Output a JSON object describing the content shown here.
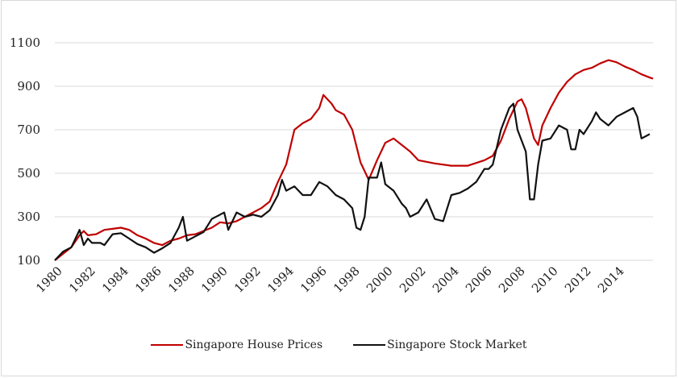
{
  "chart_data": {
    "type": "line",
    "title": "",
    "xlabel": "",
    "ylabel": "",
    "ylim": [
      100,
      1100
    ],
    "xlim": [
      1980,
      2016.2
    ],
    "yticks": [
      "1100",
      "900",
      "700",
      "500",
      "300",
      "100"
    ],
    "ytick_values": [
      1100,
      900,
      700,
      500,
      300,
      100
    ],
    "xticks": [
      "1980",
      "1982",
      "1984",
      "1986",
      "1988",
      "1990",
      "1992",
      "1994",
      "1996",
      "1998",
      "2000",
      "2002",
      "2004",
      "2006",
      "2008",
      "2010",
      "2012",
      "2014"
    ],
    "xtick_values": [
      1980,
      1982,
      1984,
      1986,
      1988,
      1990,
      1992,
      1994,
      1996,
      1998,
      2000,
      2002,
      2004,
      2006,
      2008,
      2010,
      2012,
      2014
    ],
    "grid": true,
    "legend_position": "bottom",
    "series": [
      {
        "name": "Singapore House Prices",
        "color": "#c00000",
        "x": [
          1980,
          1980.5,
          1981,
          1981.5,
          1981.75,
          1982,
          1982.5,
          1983,
          1983.5,
          1984,
          1984.5,
          1985,
          1985.5,
          1986,
          1986.5,
          1987,
          1987.5,
          1988,
          1988.5,
          1989,
          1989.5,
          1990,
          1990.5,
          1991,
          1991.5,
          1992,
          1992.5,
          1993,
          1993.5,
          1994,
          1994.5,
          1995,
          1995.5,
          1996,
          1996.25,
          1996.75,
          1997,
          1997.5,
          1998,
          1998.5,
          1999,
          1999.5,
          2000,
          2000.5,
          2001,
          2001.5,
          2002,
          2003,
          2004,
          2005,
          2006,
          2006.5,
          2007,
          2007.5,
          2008,
          2008.25,
          2008.5,
          2009,
          2009.25,
          2009.5,
          2010,
          2010.5,
          2011,
          2011.5,
          2012,
          2012.5,
          2013,
          2013.5,
          2014,
          2014.5,
          2015,
          2015.5,
          2016,
          2016.2
        ],
        "y": [
          100,
          130,
          160,
          215,
          235,
          215,
          220,
          240,
          245,
          250,
          240,
          215,
          200,
          180,
          170,
          190,
          200,
          215,
          220,
          235,
          250,
          275,
          270,
          280,
          300,
          320,
          340,
          370,
          460,
          540,
          700,
          730,
          750,
          800,
          860,
          820,
          790,
          770,
          700,
          550,
          470,
          560,
          640,
          660,
          630,
          600,
          560,
          545,
          535,
          535,
          560,
          580,
          650,
          750,
          830,
          840,
          800,
          660,
          630,
          720,
          800,
          870,
          920,
          955,
          975,
          985,
          1005,
          1020,
          1010,
          990,
          975,
          955,
          940,
          935
        ]
      },
      {
        "name": "Singapore Stock Market",
        "color": "#111111",
        "x": [
          1980,
          1980.5,
          1981,
          1981.5,
          1981.75,
          1982,
          1982.25,
          1982.75,
          1983,
          1983.5,
          1984,
          1984.5,
          1985,
          1985.5,
          1986,
          1986.5,
          1987,
          1987.5,
          1987.75,
          1988,
          1988.5,
          1989,
          1989.5,
          1990,
          1990.25,
          1990.5,
          1991,
          1991.5,
          1992,
          1992.5,
          1993,
          1993.5,
          1993.75,
          1994,
          1994.5,
          1995,
          1995.5,
          1996,
          1996.5,
          1997,
          1997.5,
          1998,
          1998.25,
          1998.5,
          1998.75,
          1999,
          1999.5,
          1999.75,
          2000,
          2000.5,
          2001,
          2001.25,
          2001.5,
          2002,
          2002.5,
          2003,
          2003.5,
          2004,
          2004.5,
          2005,
          2005.5,
          2006,
          2006.25,
          2006.5,
          2007,
          2007.5,
          2007.75,
          2008,
          2008.5,
          2008.75,
          2009,
          2009.25,
          2009.5,
          2010,
          2010.5,
          2011,
          2011.25,
          2011.5,
          2011.75,
          2012,
          2012.5,
          2012.75,
          2013,
          2013.5,
          2014,
          2014.5,
          2015,
          2015.25,
          2015.5,
          2015.75,
          2016
        ],
        "y": [
          100,
          140,
          160,
          240,
          170,
          200,
          180,
          180,
          170,
          220,
          225,
          200,
          175,
          160,
          135,
          155,
          180,
          250,
          300,
          190,
          210,
          230,
          290,
          310,
          320,
          240,
          320,
          300,
          310,
          300,
          330,
          400,
          470,
          420,
          440,
          400,
          400,
          460,
          440,
          400,
          380,
          340,
          250,
          240,
          300,
          480,
          480,
          550,
          450,
          420,
          360,
          340,
          300,
          320,
          380,
          290,
          280,
          400,
          410,
          430,
          460,
          520,
          520,
          540,
          700,
          800,
          820,
          700,
          600,
          380,
          380,
          540,
          650,
          660,
          720,
          700,
          610,
          610,
          700,
          680,
          740,
          780,
          750,
          720,
          760,
          780,
          800,
          760,
          660,
          670,
          680
        ]
      }
    ]
  }
}
